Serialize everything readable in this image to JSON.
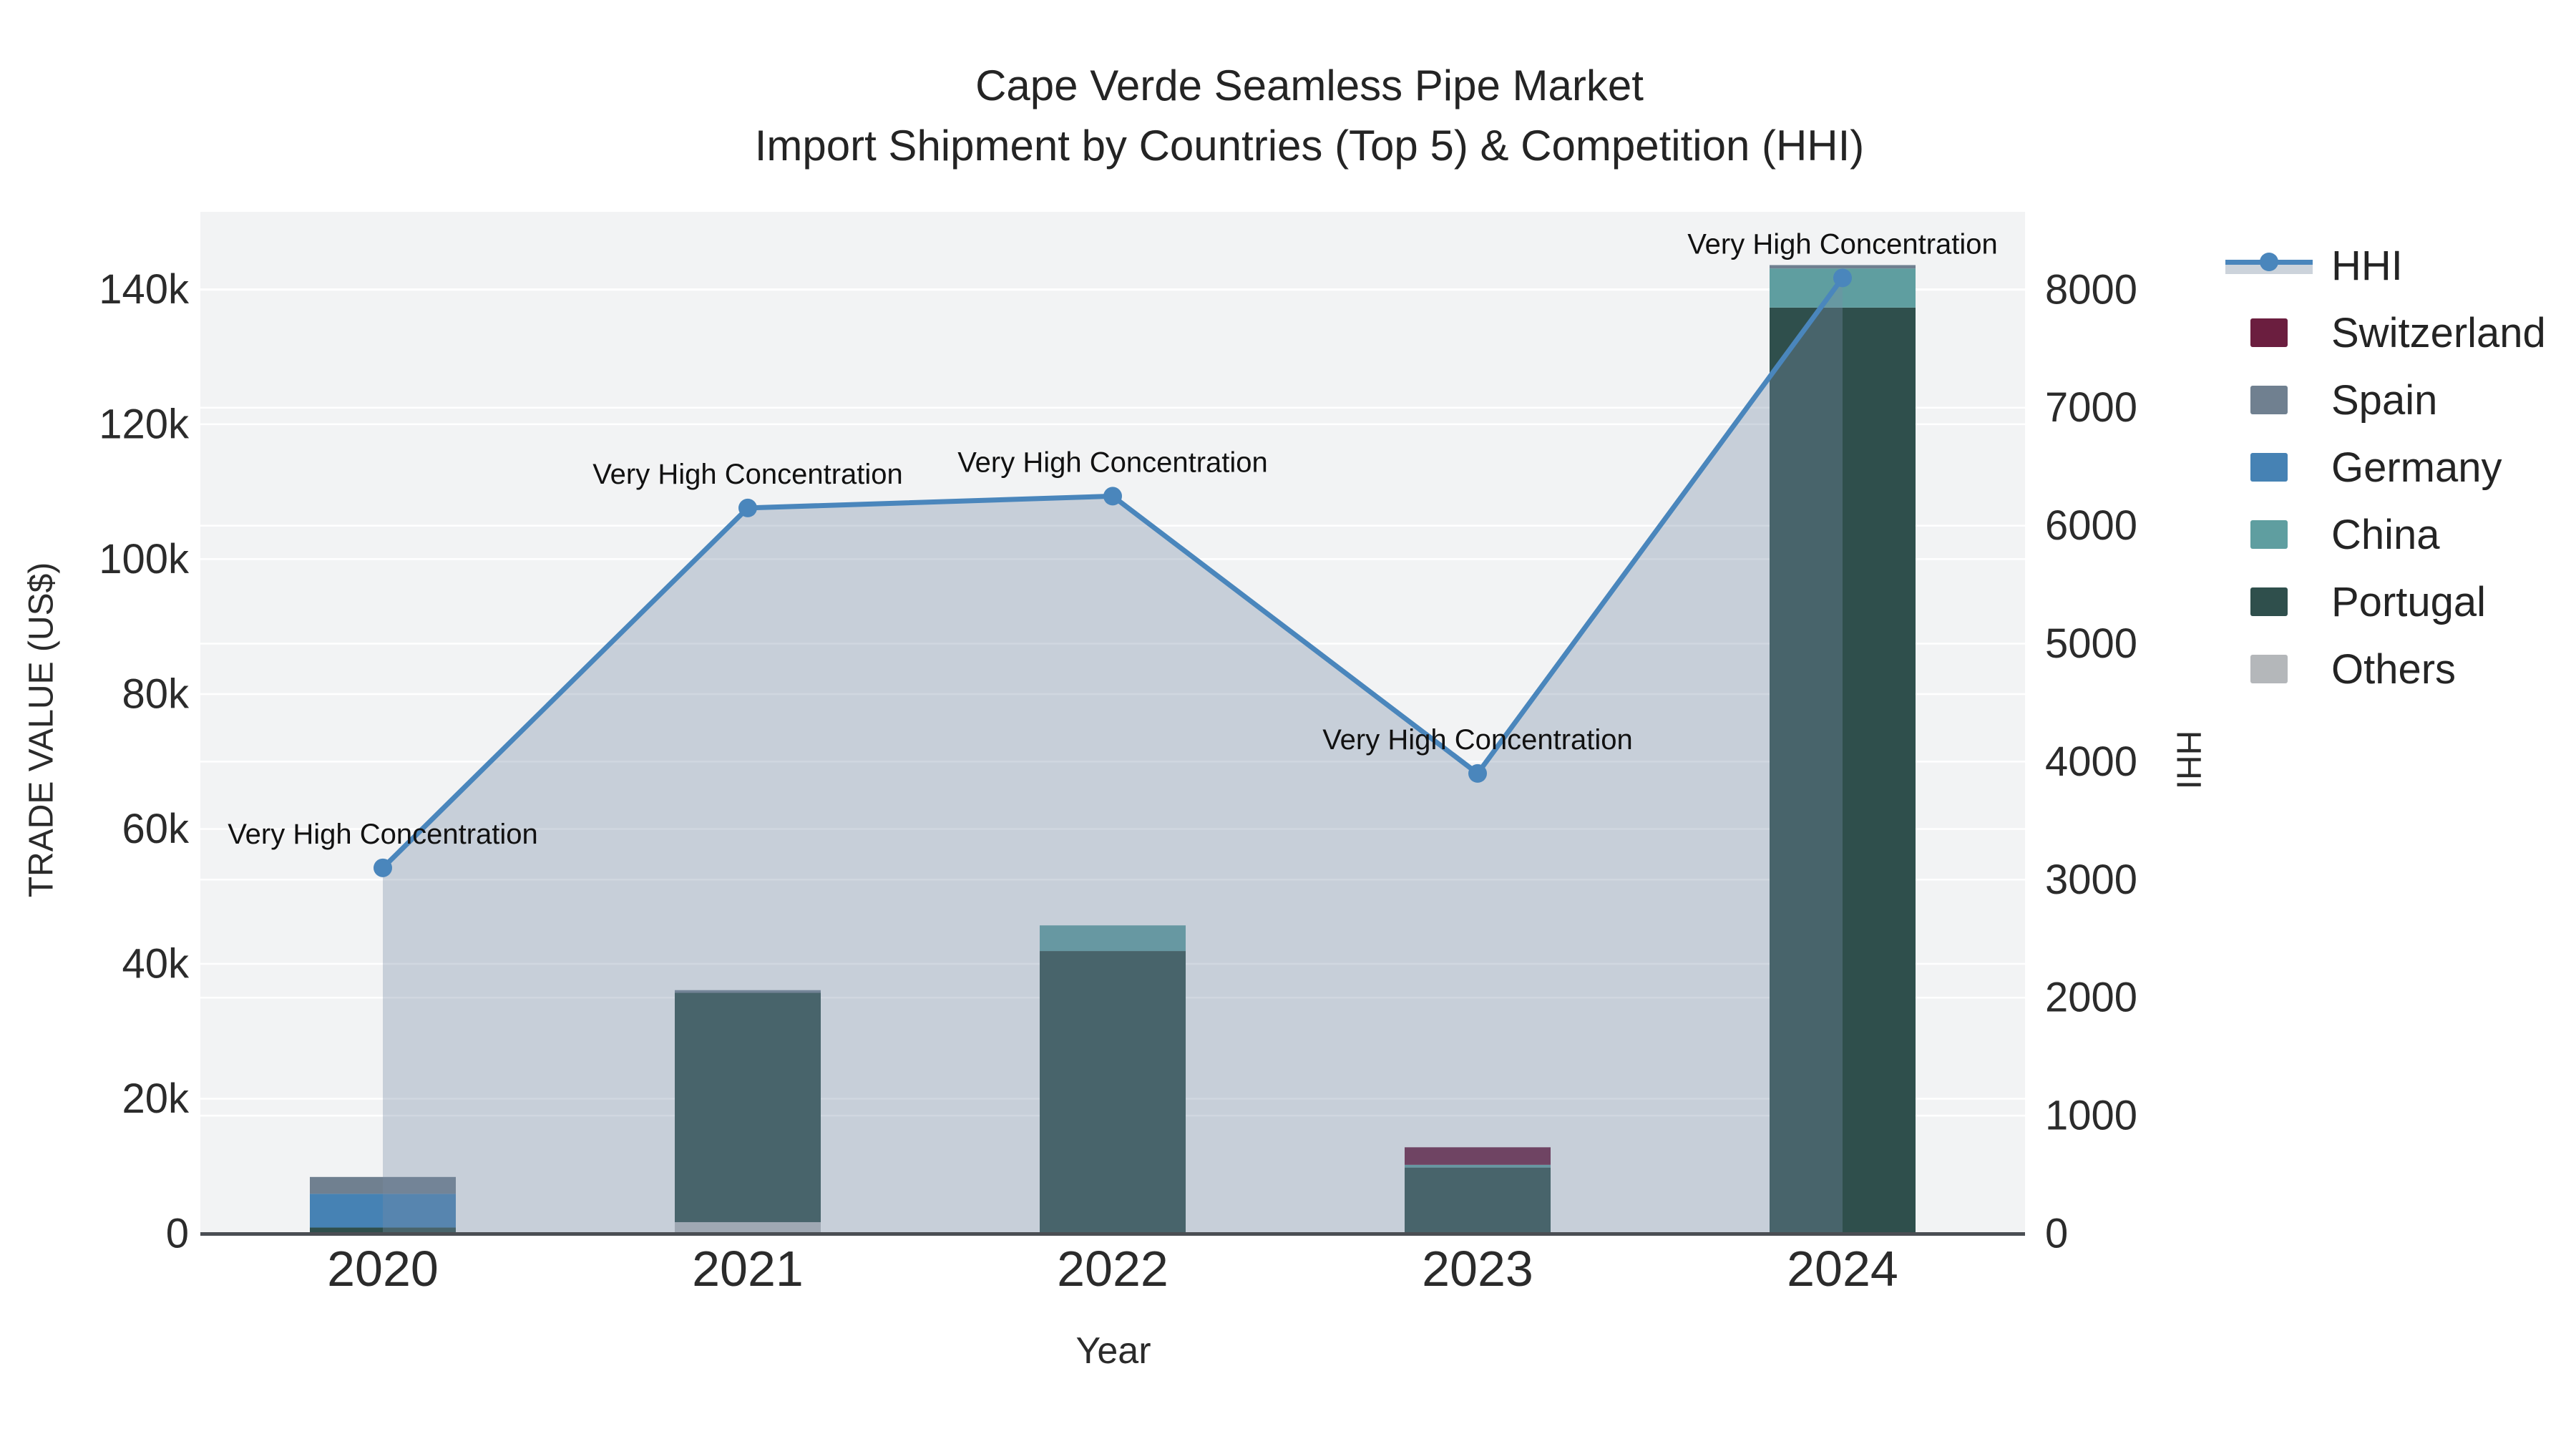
{
  "title": {
    "line1": "Cape Verde Seamless Pipe Market",
    "line2": "Import Shipment by Countries (Top 5) & Competition (HHI)"
  },
  "axes": {
    "x_title": "Year",
    "y_left_title": "TRADE VALUE (US$)",
    "y_right_title": "HHI"
  },
  "colors": {
    "plot_bg": "#f2f3f4",
    "grid": "#ffffff",
    "axis_line": "#4a4e53",
    "tick_text": "#2b2b2b",
    "annotation_text": "#111111"
  },
  "legend": {
    "items": [
      {
        "label": "HHI",
        "type": "line",
        "color": "#4a86bc"
      },
      {
        "label": "Switzerland",
        "type": "swatch",
        "color": "#6b1e3f"
      },
      {
        "label": "Spain",
        "type": "swatch",
        "color": "#708090"
      },
      {
        "label": "Germany",
        "type": "swatch",
        "color": "#4682b4"
      },
      {
        "label": "China",
        "type": "swatch",
        "color": "#5f9ea0"
      },
      {
        "label": "Portugal",
        "type": "swatch",
        "color": "#2f4f4c"
      },
      {
        "label": "Others",
        "type": "swatch",
        "color": "#b4b7ba"
      }
    ]
  },
  "chart_data": {
    "type": "bar+line",
    "title": "Cape Verde Seamless Pipe Market — Import Shipment by Countries (Top 5) & Competition (HHI)",
    "categories": [
      "2020",
      "2021",
      "2022",
      "2023",
      "2024"
    ],
    "stack_order_bottom_to_top": [
      "Others",
      "Portugal",
      "China",
      "Germany",
      "Spain",
      "Switzerland"
    ],
    "bar_series": [
      {
        "name": "Switzerland",
        "color": "#6b1e3f",
        "values": [
          0,
          0,
          0,
          2600,
          0
        ]
      },
      {
        "name": "Spain",
        "color": "#708090",
        "values": [
          2500,
          400,
          0,
          0,
          500
        ]
      },
      {
        "name": "Germany",
        "color": "#4682b4",
        "values": [
          5000,
          0,
          0,
          0,
          0
        ]
      },
      {
        "name": "China",
        "color": "#5f9ea0",
        "values": [
          0,
          0,
          3800,
          400,
          5800
        ]
      },
      {
        "name": "Portugal",
        "color": "#2f4f4c",
        "values": [
          900,
          34000,
          41900,
          9800,
          137300
        ]
      },
      {
        "name": "Others",
        "color": "#b4b7ba",
        "values": [
          0,
          1700,
          0,
          0,
          0
        ]
      }
    ],
    "bar_totals": [
      8400,
      36100,
      45700,
      12800,
      143600
    ],
    "line_series": {
      "name": "HHI",
      "color": "#4a86bc",
      "area_fill": "rgba(120,140,165,0.35)",
      "values": [
        3100,
        6150,
        6250,
        3900,
        8100
      ]
    },
    "annotations": [
      "Very High Concentration",
      "Very High Concentration",
      "Very High Concentration",
      "Very High Concentration",
      "Very High Concentration"
    ],
    "xlabel": "Year",
    "y_left": {
      "label": "TRADE VALUE (US$)",
      "range": [
        0,
        151500
      ],
      "tick_step": 20000,
      "tick_labels": [
        "0",
        "20k",
        "40k",
        "60k",
        "80k",
        "100k",
        "120k",
        "140k"
      ]
    },
    "y_right": {
      "label": "HHI",
      "range": [
        0,
        8660
      ],
      "tick_step": 1000,
      "tick_labels": [
        "0",
        "1000",
        "2000",
        "3000",
        "4000",
        "5000",
        "6000",
        "7000",
        "8000"
      ]
    },
    "grid": true,
    "legend_position": "right"
  }
}
